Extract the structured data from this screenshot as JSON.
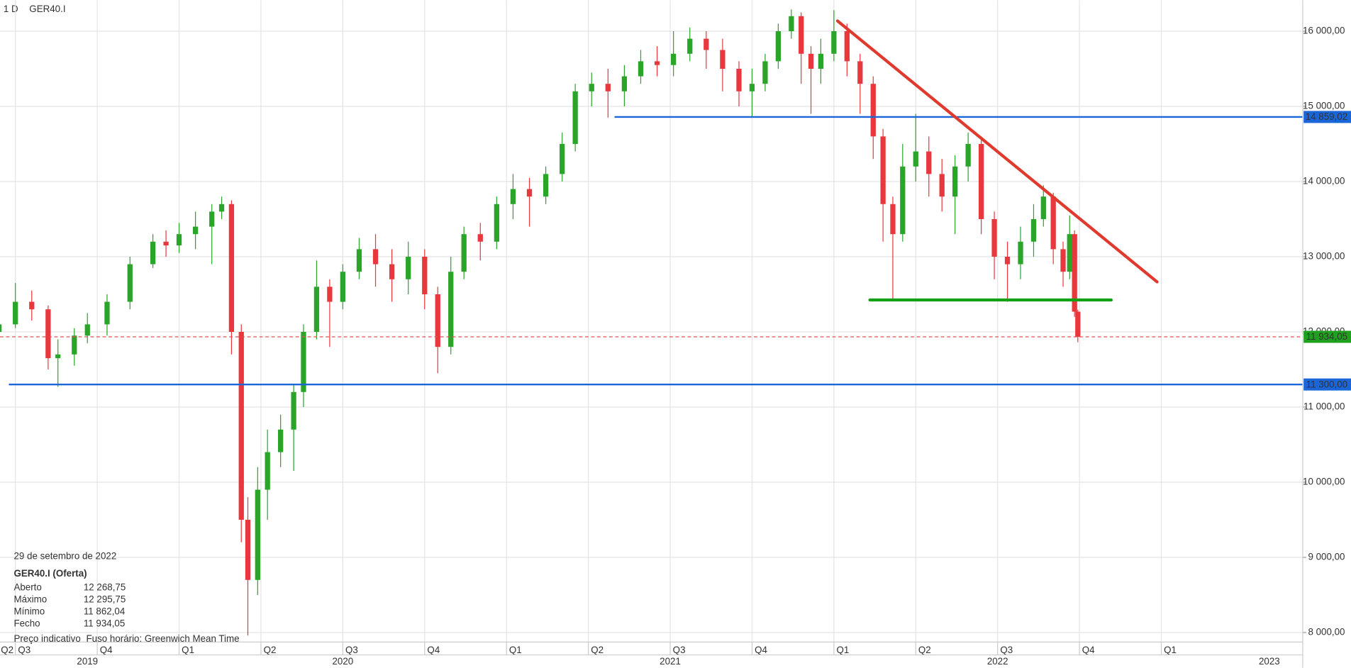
{
  "header": {
    "interval": "1 D",
    "symbol": "GER40.I"
  },
  "info": {
    "date": "29 de setembro de 2022",
    "instrument": "GER40.I (Oferta)",
    "rows": [
      {
        "name": "Aberto",
        "value": 12268.75,
        "label": "12 268,75"
      },
      {
        "name": "Máximo",
        "value": 12295.75,
        "label": "12 295,75"
      },
      {
        "name": "Mínimo",
        "value": 11862.04,
        "label": "11 862,04"
      },
      {
        "name": "Fecho",
        "value": 11934.05,
        "label": "11 934,05"
      }
    ],
    "note": "Preço indicativo",
    "timezone": "Fuso horário: Greenwich Mean Time"
  },
  "chart_data": {
    "type": "candlestick",
    "up_color": "#2aa52a",
    "down_color": "#e8383d",
    "grid": true,
    "xlim": [
      2019.453,
      2023.432
    ],
    "ylim": [
      7874,
      16413
    ],
    "yticks": [
      {
        "value": 8000,
        "label": "8 000,00"
      },
      {
        "value": 9000,
        "label": "9 000,00"
      },
      {
        "value": 10000,
        "label": "10 000,00"
      },
      {
        "value": 11000,
        "label": "11 000,00"
      },
      {
        "value": 12000,
        "label": "12 000,00"
      },
      {
        "value": 13000,
        "label": "13 000,00"
      },
      {
        "value": 14000,
        "label": "14 000,00"
      },
      {
        "value": 15000,
        "label": "15 000,00"
      },
      {
        "value": 16000,
        "label": "16 000,00"
      }
    ],
    "xticks": [
      {
        "value": 2019.25,
        "label": "Q2"
      },
      {
        "value": 2019.5,
        "label": "Q3"
      },
      {
        "value": 2019.75,
        "label": "Q4"
      },
      {
        "value": 2020.0,
        "label": "Q1"
      },
      {
        "value": 2020.25,
        "label": "Q2"
      },
      {
        "value": 2020.5,
        "label": "Q3"
      },
      {
        "value": 2020.75,
        "label": "Q4"
      },
      {
        "value": 2021.0,
        "label": "Q1"
      },
      {
        "value": 2021.25,
        "label": "Q2"
      },
      {
        "value": 2021.5,
        "label": "Q3"
      },
      {
        "value": 2021.75,
        "label": "Q4"
      },
      {
        "value": 2022.0,
        "label": "Q1"
      },
      {
        "value": 2022.25,
        "label": "Q2"
      },
      {
        "value": 2022.5,
        "label": "Q3"
      },
      {
        "value": 2022.75,
        "label": "Q4"
      },
      {
        "value": 2023.0,
        "label": "Q1"
      }
    ],
    "year_ticks": [
      {
        "value": 2019.72,
        "label": "2019"
      },
      {
        "value": 2020.5,
        "label": "2020"
      },
      {
        "value": 2021.5,
        "label": "2021"
      },
      {
        "value": 2022.5,
        "label": "2022"
      },
      {
        "value": 2023.33,
        "label": "2023"
      }
    ],
    "x": [
      2019.45,
      2019.5,
      2019.55,
      2019.6,
      2019.63,
      2019.68,
      2019.72,
      2019.78,
      2019.85,
      2019.92,
      2019.96,
      2020.0,
      2020.05,
      2020.1,
      2020.13,
      2020.16,
      2020.19,
      2020.21,
      2020.24,
      2020.27,
      2020.31,
      2020.35,
      2020.38,
      2020.42,
      2020.46,
      2020.5,
      2020.55,
      2020.6,
      2020.65,
      2020.7,
      2020.75,
      2020.79,
      2020.83,
      2020.87,
      2020.92,
      2020.97,
      2021.02,
      2021.07,
      2021.12,
      2021.17,
      2021.21,
      2021.26,
      2021.31,
      2021.36,
      2021.41,
      2021.46,
      2021.51,
      2021.56,
      2021.61,
      2021.66,
      2021.71,
      2021.75,
      2021.79,
      2021.83,
      2021.87,
      2021.9,
      2021.93,
      2021.96,
      2022.0,
      2022.04,
      2022.08,
      2022.12,
      2022.15,
      2022.18,
      2022.21,
      2022.25,
      2022.29,
      2022.33,
      2022.37,
      2022.41,
      2022.45,
      2022.49,
      2022.53,
      2022.57,
      2022.61,
      2022.64,
      2022.67,
      2022.7,
      2022.72,
      2022.735,
      2022.745
    ],
    "open": [
      12000,
      12100,
      12400,
      12300,
      11650,
      11700,
      11950,
      12100,
      12400,
      12900,
      13200,
      13150,
      13300,
      13400,
      13600,
      13700,
      12000,
      9500,
      8700,
      9900,
      10400,
      10700,
      11200,
      12000,
      12600,
      12400,
      12800,
      13100,
      12900,
      12700,
      13000,
      12500,
      11800,
      12800,
      13300,
      13200,
      13700,
      13900,
      13800,
      14100,
      14500,
      15200,
      15300,
      15200,
      15400,
      15600,
      15550,
      15700,
      15900,
      15750,
      15500,
      15200,
      15300,
      15600,
      16000,
      16200,
      15700,
      15500,
      15700,
      16000,
      15600,
      15300,
      14600,
      13700,
      13300,
      14200,
      14400,
      14100,
      13800,
      14200,
      14500,
      13500,
      13000,
      12900,
      13200,
      13500,
      13800,
      13100,
      12800,
      13300,
      12268.75
    ],
    "high": [
      12250,
      12650,
      12550,
      12350,
      11900,
      12050,
      12250,
      12500,
      13000,
      13300,
      13350,
      13450,
      13600,
      13700,
      13800,
      13750,
      12100,
      9800,
      10200,
      10700,
      10900,
      11300,
      12100,
      12950,
      12700,
      12900,
      13250,
      13300,
      13100,
      13200,
      13100,
      12600,
      13000,
      13400,
      13450,
      13800,
      14100,
      14050,
      14200,
      14650,
      15300,
      15450,
      15500,
      15550,
      15750,
      15800,
      16000,
      16050,
      16000,
      15900,
      15600,
      15500,
      15700,
      16100,
      16290,
      16250,
      15800,
      15900,
      16280,
      16100,
      15700,
      15400,
      14700,
      13800,
      14500,
      14900,
      14600,
      14300,
      14350,
      14650,
      14600,
      13600,
      13200,
      13400,
      13700,
      13950,
      13850,
      13200,
      13550,
      13350,
      12295.75
    ],
    "low": [
      11900,
      12050,
      12150,
      11500,
      11270,
      11550,
      11850,
      11950,
      12300,
      12850,
      13000,
      13050,
      13100,
      12900,
      13500,
      11700,
      9200,
      7960,
      8500,
      9500,
      10200,
      10150,
      11000,
      11900,
      11800,
      12300,
      12700,
      12600,
      12400,
      12500,
      12300,
      11450,
      11700,
      12700,
      12950,
      13100,
      13500,
      13400,
      13700,
      14000,
      14400,
      15000,
      14850,
      15000,
      15300,
      15400,
      15400,
      15600,
      15500,
      15200,
      15000,
      14850,
      15200,
      15500,
      15900,
      15300,
      14900,
      15300,
      15600,
      15400,
      14900,
      14300,
      13200,
      12430,
      13200,
      14000,
      13800,
      13600,
      13300,
      14000,
      13300,
      12700,
      12400,
      12700,
      13000,
      13400,
      12900,
      12600,
      12700,
      12200,
      11862.04
    ],
    "close": [
      12100,
      12400,
      12300,
      11650,
      11700,
      11950,
      12100,
      12400,
      12900,
      13200,
      13150,
      13300,
      13400,
      13600,
      13700,
      12000,
      9500,
      8700,
      9900,
      10400,
      10700,
      11200,
      12000,
      12600,
      12400,
      12800,
      13100,
      12900,
      12700,
      13000,
      12500,
      11800,
      12800,
      13300,
      13200,
      13700,
      13900,
      13800,
      14100,
      14500,
      15200,
      15300,
      15200,
      15400,
      15600,
      15550,
      15700,
      15900,
      15750,
      15500,
      15200,
      15300,
      15600,
      16000,
      16200,
      15700,
      15500,
      15700,
      16000,
      15600,
      15300,
      14600,
      13700,
      13300,
      14200,
      14400,
      14100,
      13800,
      14200,
      14500,
      13500,
      13000,
      12900,
      13200,
      13500,
      13800,
      13100,
      12800,
      13300,
      12268.75,
      11934.05
    ],
    "levels": [
      {
        "value": 14859.02,
        "label": "14 859,02",
        "color": "#1a66d9",
        "x_start": 2021.33
      },
      {
        "value": 11300,
        "label": "11 300,00",
        "color": "#1a66d9",
        "x_start": 2019.48
      },
      {
        "value": 11934.05,
        "label": "11 934,05",
        "color": "#e05050",
        "label_color": "#1fa01f",
        "dashed": true
      }
    ],
    "trendlines": [
      {
        "x": [
          2022.011,
          2022.987
        ],
        "y": [
          16137,
          12665
        ],
        "color": "#e03a2f"
      },
      {
        "x": [
          2022.11,
          2022.847
        ],
        "y": [
          12424,
          12424
        ],
        "color": "#14a014"
      }
    ]
  }
}
